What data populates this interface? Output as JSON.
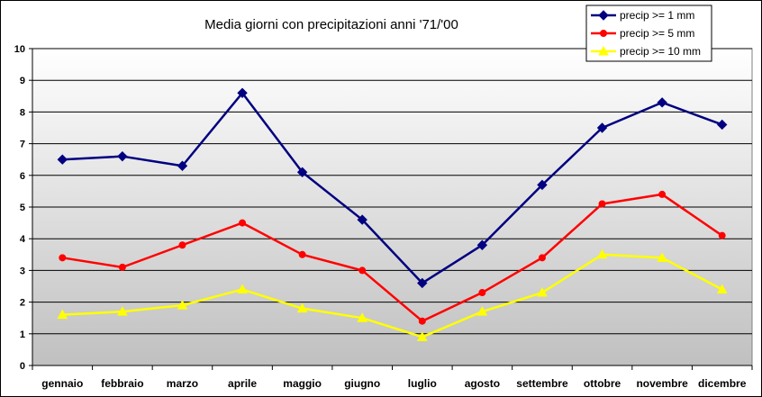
{
  "chart_data": {
    "type": "line",
    "title": "Media giorni con precipitazioni anni '71/'00",
    "xlabel": "",
    "ylabel": "",
    "ylim": [
      0,
      10
    ],
    "yticks": [
      0,
      1,
      2,
      3,
      4,
      5,
      6,
      7,
      8,
      9,
      10
    ],
    "grid": true,
    "legend_position": "top-right",
    "categories": [
      "gennaio",
      "febbraio",
      "marzo",
      "aprile",
      "maggio",
      "giugno",
      "luglio",
      "agosto",
      "settembre",
      "ottobre",
      "novembre",
      "dicembre"
    ],
    "series": [
      {
        "name": "precip >= 1 mm",
        "color": "#000080",
        "marker": "diamond",
        "values": [
          6.5,
          6.6,
          6.3,
          8.6,
          6.1,
          4.6,
          2.6,
          3.8,
          5.7,
          7.5,
          8.3,
          7.6
        ]
      },
      {
        "name": "precip >= 5 mm",
        "color": "#ff0000",
        "marker": "circle",
        "values": [
          3.4,
          3.1,
          3.8,
          4.5,
          3.5,
          3.0,
          1.4,
          2.3,
          3.4,
          5.1,
          5.4,
          4.1
        ]
      },
      {
        "name": "precip >= 10 mm",
        "color": "#ffff00",
        "marker": "triangle",
        "values": [
          1.6,
          1.7,
          1.9,
          2.4,
          1.8,
          1.5,
          0.9,
          1.7,
          2.3,
          3.5,
          3.4,
          2.4
        ]
      }
    ]
  }
}
